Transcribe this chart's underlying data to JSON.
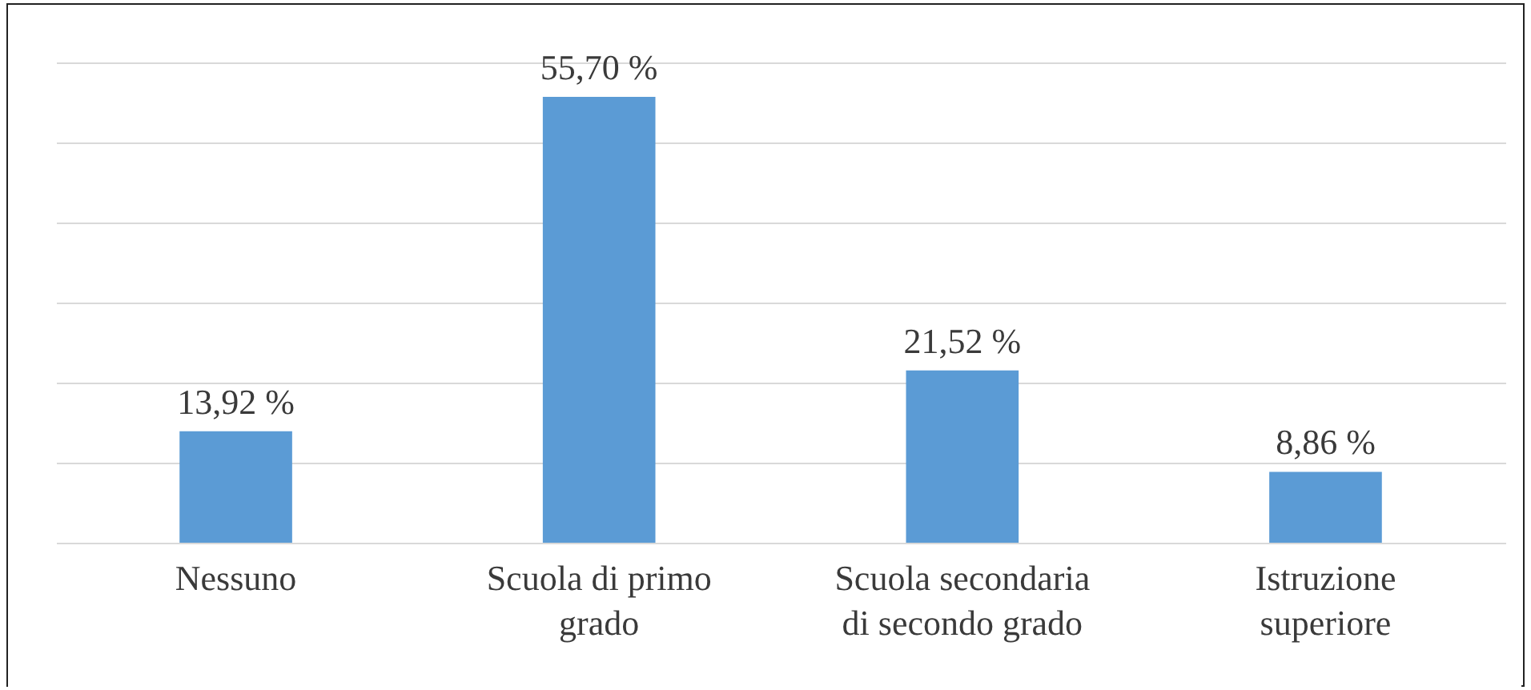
{
  "chart_data": {
    "type": "bar",
    "relative": false,
    "categories": [
      "Nessuno",
      "Scuola di primo grado",
      "Scuola secondaria di secondo grado",
      "Istruzione superiore"
    ],
    "values": [
      13.92,
      55.7,
      21.52,
      8.86
    ],
    "color": "#5b9bd5",
    "value_labels": [
      "13,92 %",
      "55,70 %",
      "21,52 %",
      "8,86 %"
    ],
    "ylim": [
      0,
      60
    ],
    "yticks": [
      0,
      10,
      20,
      30,
      40,
      50,
      60
    ],
    "grid": "y",
    "tick_labels": "x"
  }
}
